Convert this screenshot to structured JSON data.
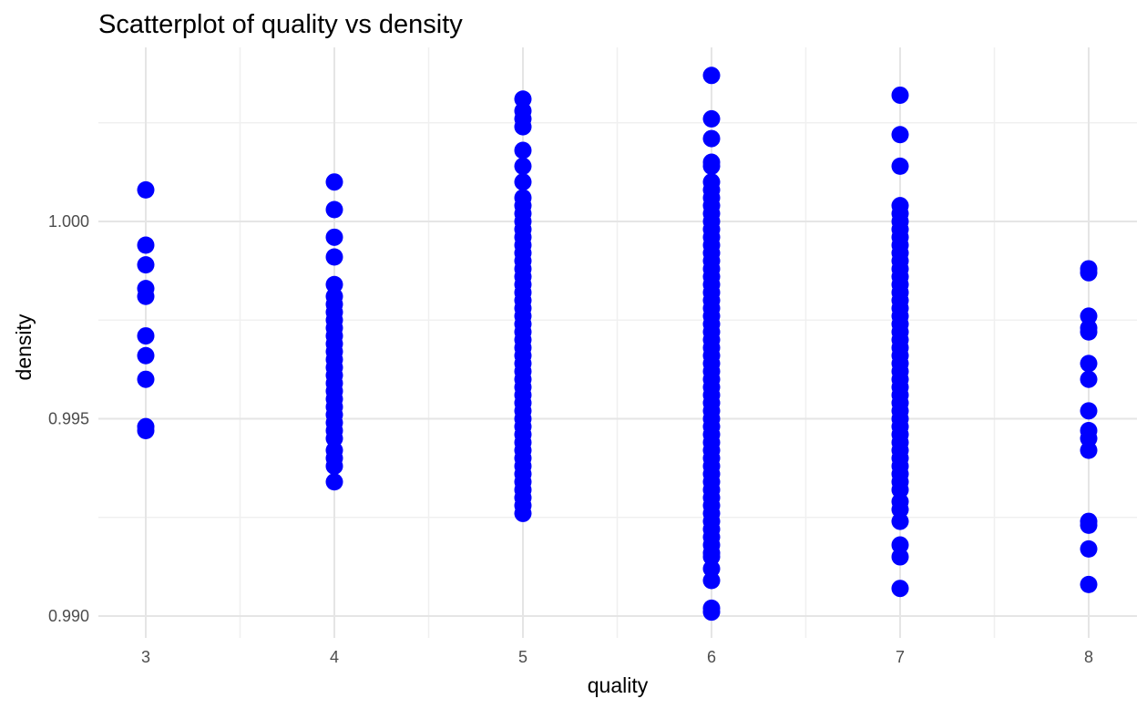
{
  "chart_data": {
    "type": "scatter",
    "title": "Scatterplot of quality vs density",
    "xlabel": "quality",
    "ylabel": "density",
    "x_ticks": [
      "3",
      "4",
      "5",
      "6",
      "7",
      "8"
    ],
    "y_ticks": [
      "0.990",
      "0.995",
      "1.000"
    ],
    "y_tick_values": [
      0.99,
      0.995,
      1.0
    ],
    "xlim": [
      2.5,
      8.5
    ],
    "ylim": [
      0.9899,
      1.0037
    ],
    "grid": true,
    "point_color": "#0000ff",
    "series": [
      {
        "values": [
          {
            "x": 3,
            "y": 1.0008
          },
          {
            "x": 3,
            "y": 0.9994
          },
          {
            "x": 3,
            "y": 0.9989
          },
          {
            "x": 3,
            "y": 0.9983
          },
          {
            "x": 3,
            "y": 0.9981
          },
          {
            "x": 3,
            "y": 0.9971
          },
          {
            "x": 3,
            "y": 0.9966
          },
          {
            "x": 3,
            "y": 0.996
          },
          {
            "x": 3,
            "y": 0.9948
          },
          {
            "x": 3,
            "y": 0.9947
          },
          {
            "x": 4,
            "y": 1.001
          },
          {
            "x": 4,
            "y": 1.0003
          },
          {
            "x": 4,
            "y": 0.9996
          },
          {
            "x": 4,
            "y": 0.9991
          },
          {
            "x": 4,
            "y": 0.9984
          },
          {
            "x": 4,
            "y": 0.9981
          },
          {
            "x": 4,
            "y": 0.9979
          },
          {
            "x": 4,
            "y": 0.9977
          },
          {
            "x": 4,
            "y": 0.9975
          },
          {
            "x": 4,
            "y": 0.9973
          },
          {
            "x": 4,
            "y": 0.9971
          },
          {
            "x": 4,
            "y": 0.9969
          },
          {
            "x": 4,
            "y": 0.9967
          },
          {
            "x": 4,
            "y": 0.9965
          },
          {
            "x": 4,
            "y": 0.9963
          },
          {
            "x": 4,
            "y": 0.9961
          },
          {
            "x": 4,
            "y": 0.9959
          },
          {
            "x": 4,
            "y": 0.9957
          },
          {
            "x": 4,
            "y": 0.9955
          },
          {
            "x": 4,
            "y": 0.9953
          },
          {
            "x": 4,
            "y": 0.9951
          },
          {
            "x": 4,
            "y": 0.9949
          },
          {
            "x": 4,
            "y": 0.9947
          },
          {
            "x": 4,
            "y": 0.9945
          },
          {
            "x": 4,
            "y": 0.9942
          },
          {
            "x": 4,
            "y": 0.994
          },
          {
            "x": 4,
            "y": 0.9938
          },
          {
            "x": 4,
            "y": 0.9934
          },
          {
            "x": 5,
            "y": 1.0031
          },
          {
            "x": 5,
            "y": 1.0028
          },
          {
            "x": 5,
            "y": 1.0026
          },
          {
            "x": 5,
            "y": 1.0024
          },
          {
            "x": 5,
            "y": 1.0018
          },
          {
            "x": 5,
            "y": 1.0014
          },
          {
            "x": 5,
            "y": 1.001
          },
          {
            "x": 5,
            "y": 1.0006
          },
          {
            "x": 5,
            "y": 1.0004
          },
          {
            "x": 5,
            "y": 1.0002
          },
          {
            "x": 5,
            "y": 1.0
          },
          {
            "x": 5,
            "y": 0.9998
          },
          {
            "x": 5,
            "y": 0.9996
          },
          {
            "x": 5,
            "y": 0.9994
          },
          {
            "x": 5,
            "y": 0.9992
          },
          {
            "x": 5,
            "y": 0.999
          },
          {
            "x": 5,
            "y": 0.9988
          },
          {
            "x": 5,
            "y": 0.9986
          },
          {
            "x": 5,
            "y": 0.9984
          },
          {
            "x": 5,
            "y": 0.9982
          },
          {
            "x": 5,
            "y": 0.998
          },
          {
            "x": 5,
            "y": 0.9978
          },
          {
            "x": 5,
            "y": 0.9976
          },
          {
            "x": 5,
            "y": 0.9974
          },
          {
            "x": 5,
            "y": 0.9972
          },
          {
            "x": 5,
            "y": 0.997
          },
          {
            "x": 5,
            "y": 0.9968
          },
          {
            "x": 5,
            "y": 0.9966
          },
          {
            "x": 5,
            "y": 0.9964
          },
          {
            "x": 5,
            "y": 0.9962
          },
          {
            "x": 5,
            "y": 0.996
          },
          {
            "x": 5,
            "y": 0.9958
          },
          {
            "x": 5,
            "y": 0.9956
          },
          {
            "x": 5,
            "y": 0.9954
          },
          {
            "x": 5,
            "y": 0.9952
          },
          {
            "x": 5,
            "y": 0.995
          },
          {
            "x": 5,
            "y": 0.9948
          },
          {
            "x": 5,
            "y": 0.9946
          },
          {
            "x": 5,
            "y": 0.9944
          },
          {
            "x": 5,
            "y": 0.9942
          },
          {
            "x": 5,
            "y": 0.994
          },
          {
            "x": 5,
            "y": 0.9938
          },
          {
            "x": 5,
            "y": 0.9936
          },
          {
            "x": 5,
            "y": 0.9934
          },
          {
            "x": 5,
            "y": 0.9932
          },
          {
            "x": 5,
            "y": 0.993
          },
          {
            "x": 5,
            "y": 0.9928
          },
          {
            "x": 5,
            "y": 0.9926
          },
          {
            "x": 6,
            "y": 1.0037
          },
          {
            "x": 6,
            "y": 1.0026
          },
          {
            "x": 6,
            "y": 1.0021
          },
          {
            "x": 6,
            "y": 1.0015
          },
          {
            "x": 6,
            "y": 1.0014
          },
          {
            "x": 6,
            "y": 1.001
          },
          {
            "x": 6,
            "y": 1.0008
          },
          {
            "x": 6,
            "y": 1.0006
          },
          {
            "x": 6,
            "y": 1.0004
          },
          {
            "x": 6,
            "y": 1.0002
          },
          {
            "x": 6,
            "y": 1.0
          },
          {
            "x": 6,
            "y": 0.9998
          },
          {
            "x": 6,
            "y": 0.9996
          },
          {
            "x": 6,
            "y": 0.9994
          },
          {
            "x": 6,
            "y": 0.9992
          },
          {
            "x": 6,
            "y": 0.999
          },
          {
            "x": 6,
            "y": 0.9988
          },
          {
            "x": 6,
            "y": 0.9986
          },
          {
            "x": 6,
            "y": 0.9984
          },
          {
            "x": 6,
            "y": 0.9982
          },
          {
            "x": 6,
            "y": 0.998
          },
          {
            "x": 6,
            "y": 0.9978
          },
          {
            "x": 6,
            "y": 0.9976
          },
          {
            "x": 6,
            "y": 0.9974
          },
          {
            "x": 6,
            "y": 0.9972
          },
          {
            "x": 6,
            "y": 0.997
          },
          {
            "x": 6,
            "y": 0.9968
          },
          {
            "x": 6,
            "y": 0.9966
          },
          {
            "x": 6,
            "y": 0.9964
          },
          {
            "x": 6,
            "y": 0.9962
          },
          {
            "x": 6,
            "y": 0.996
          },
          {
            "x": 6,
            "y": 0.9958
          },
          {
            "x": 6,
            "y": 0.9956
          },
          {
            "x": 6,
            "y": 0.9954
          },
          {
            "x": 6,
            "y": 0.9952
          },
          {
            "x": 6,
            "y": 0.995
          },
          {
            "x": 6,
            "y": 0.9948
          },
          {
            "x": 6,
            "y": 0.9946
          },
          {
            "x": 6,
            "y": 0.9944
          },
          {
            "x": 6,
            "y": 0.9942
          },
          {
            "x": 6,
            "y": 0.994
          },
          {
            "x": 6,
            "y": 0.9938
          },
          {
            "x": 6,
            "y": 0.9936
          },
          {
            "x": 6,
            "y": 0.9934
          },
          {
            "x": 6,
            "y": 0.9932
          },
          {
            "x": 6,
            "y": 0.993
          },
          {
            "x": 6,
            "y": 0.9928
          },
          {
            "x": 6,
            "y": 0.9926
          },
          {
            "x": 6,
            "y": 0.9924
          },
          {
            "x": 6,
            "y": 0.9922
          },
          {
            "x": 6,
            "y": 0.992
          },
          {
            "x": 6,
            "y": 0.9918
          },
          {
            "x": 6,
            "y": 0.9916
          },
          {
            "x": 6,
            "y": 0.9915
          },
          {
            "x": 6,
            "y": 0.9912
          },
          {
            "x": 6,
            "y": 0.9909
          },
          {
            "x": 6,
            "y": 0.9902
          },
          {
            "x": 6,
            "y": 0.9901
          },
          {
            "x": 7,
            "y": 1.0032
          },
          {
            "x": 7,
            "y": 1.0022
          },
          {
            "x": 7,
            "y": 1.0014
          },
          {
            "x": 7,
            "y": 1.0004
          },
          {
            "x": 7,
            "y": 1.0002
          },
          {
            "x": 7,
            "y": 1.0
          },
          {
            "x": 7,
            "y": 0.9998
          },
          {
            "x": 7,
            "y": 0.9996
          },
          {
            "x": 7,
            "y": 0.9994
          },
          {
            "x": 7,
            "y": 0.9992
          },
          {
            "x": 7,
            "y": 0.999
          },
          {
            "x": 7,
            "y": 0.9988
          },
          {
            "x": 7,
            "y": 0.9986
          },
          {
            "x": 7,
            "y": 0.9984
          },
          {
            "x": 7,
            "y": 0.9982
          },
          {
            "x": 7,
            "y": 0.998
          },
          {
            "x": 7,
            "y": 0.9978
          },
          {
            "x": 7,
            "y": 0.9976
          },
          {
            "x": 7,
            "y": 0.9974
          },
          {
            "x": 7,
            "y": 0.9972
          },
          {
            "x": 7,
            "y": 0.997
          },
          {
            "x": 7,
            "y": 0.9968
          },
          {
            "x": 7,
            "y": 0.9966
          },
          {
            "x": 7,
            "y": 0.9964
          },
          {
            "x": 7,
            "y": 0.9962
          },
          {
            "x": 7,
            "y": 0.996
          },
          {
            "x": 7,
            "y": 0.9958
          },
          {
            "x": 7,
            "y": 0.9956
          },
          {
            "x": 7,
            "y": 0.9954
          },
          {
            "x": 7,
            "y": 0.9952
          },
          {
            "x": 7,
            "y": 0.995
          },
          {
            "x": 7,
            "y": 0.9948
          },
          {
            "x": 7,
            "y": 0.9946
          },
          {
            "x": 7,
            "y": 0.9944
          },
          {
            "x": 7,
            "y": 0.9942
          },
          {
            "x": 7,
            "y": 0.994
          },
          {
            "x": 7,
            "y": 0.9938
          },
          {
            "x": 7,
            "y": 0.9936
          },
          {
            "x": 7,
            "y": 0.9934
          },
          {
            "x": 7,
            "y": 0.9932
          },
          {
            "x": 7,
            "y": 0.9929
          },
          {
            "x": 7,
            "y": 0.9927
          },
          {
            "x": 7,
            "y": 0.9924
          },
          {
            "x": 7,
            "y": 0.9918
          },
          {
            "x": 7,
            "y": 0.9915
          },
          {
            "x": 7,
            "y": 0.9907
          },
          {
            "x": 8,
            "y": 0.9988
          },
          {
            "x": 8,
            "y": 0.9987
          },
          {
            "x": 8,
            "y": 0.9976
          },
          {
            "x": 8,
            "y": 0.9973
          },
          {
            "x": 8,
            "y": 0.9972
          },
          {
            "x": 8,
            "y": 0.9964
          },
          {
            "x": 8,
            "y": 0.996
          },
          {
            "x": 8,
            "y": 0.9952
          },
          {
            "x": 8,
            "y": 0.9947
          },
          {
            "x": 8,
            "y": 0.9945
          },
          {
            "x": 8,
            "y": 0.9942
          },
          {
            "x": 8,
            "y": 0.9924
          },
          {
            "x": 8,
            "y": 0.9923
          },
          {
            "x": 8,
            "y": 0.9917
          },
          {
            "x": 8,
            "y": 0.9908
          }
        ]
      }
    ]
  }
}
